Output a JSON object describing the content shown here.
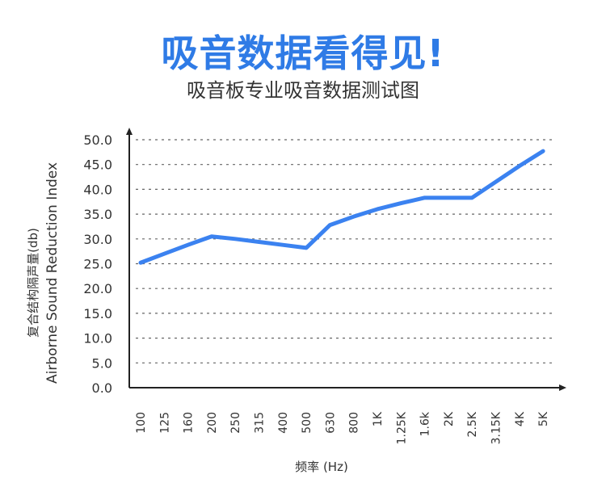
{
  "header": {
    "title": "吸音数据看得见!",
    "subtitle": "吸音板专业吸音数据测试图"
  },
  "colors": {
    "accent": "#2f7be6",
    "line": "#3b82f0",
    "axis": "#222222",
    "grid": "#666666"
  },
  "chart_data": {
    "type": "line",
    "ylabel_cn": "复合结构隔声量(db)",
    "ylabel_en": "Airborne Sound Reduction Index",
    "xlabel": "频率 (Hz)",
    "y_ticks": [
      "0.0",
      "5.0",
      "10.0",
      "15.0",
      "20.0",
      "25.0",
      "30.0",
      "35.0",
      "40.0",
      "45.0",
      "50.0"
    ],
    "ylim": [
      0,
      50
    ],
    "categories": [
      "100",
      "125",
      "160",
      "200",
      "250",
      "315",
      "400",
      "500",
      "630",
      "800",
      "1K",
      "1.25K",
      "1.6k",
      "2K",
      "2.5K",
      "3.15K",
      "4K",
      "5K"
    ],
    "series": [
      {
        "values": [
          25.2,
          27.0,
          28.8,
          30.5,
          30.0,
          29.4,
          28.8,
          28.2,
          32.8,
          34.5,
          36.0,
          37.2,
          38.3,
          38.3,
          38.3,
          41.5,
          44.7,
          47.7
        ]
      }
    ],
    "grid": true
  }
}
